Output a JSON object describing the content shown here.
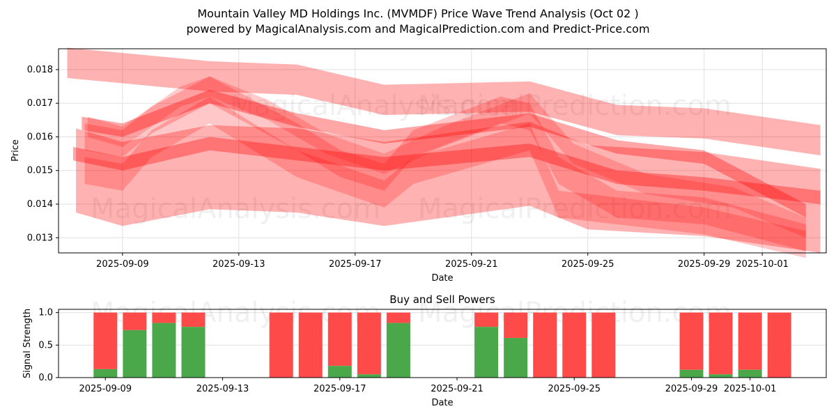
{
  "title_line1": "Mountain Valley MD Holdings Inc. (MVMDF) Price Wave Trend Analysis (Oct 02 )",
  "title_line2": "powered by MagicalAnalysis.com and MagicalPrediction.com and Predict-Price.com",
  "watermarks": [
    "MagicalAnalysis.com",
    "MagicalPrediction.com"
  ],
  "chart_data": [
    {
      "type": "area",
      "title": "",
      "xlabel": "Date",
      "ylabel": "Price",
      "x_unit": "days since 2025-09-09",
      "xlim": [
        -2.2,
        24.2
      ],
      "ylim": [
        0.01255,
        0.01862
      ],
      "xticks": [
        {
          "v": 0,
          "label": "2025-09-09"
        },
        {
          "v": 4,
          "label": "2025-09-13"
        },
        {
          "v": 8,
          "label": "2025-09-17"
        },
        {
          "v": 12,
          "label": "2025-09-21"
        },
        {
          "v": 16,
          "label": "2025-09-25"
        },
        {
          "v": 20,
          "label": "2025-09-29"
        },
        {
          "v": 22,
          "label": "2025-10-01"
        }
      ],
      "yticks": [
        {
          "v": 0.013,
          "label": "0.013"
        },
        {
          "v": 0.014,
          "label": "0.014"
        },
        {
          "v": 0.015,
          "label": "0.015"
        },
        {
          "v": 0.016,
          "label": "0.016"
        },
        {
          "v": 0.017,
          "label": "0.017"
        },
        {
          "v": 0.018,
          "label": "0.018"
        }
      ],
      "grid": true,
      "color": "#ff0000",
      "bands": [
        {
          "width": 0.0009,
          "alpha": 0.3,
          "points": [
            [
              -1.9,
              0.0182
            ],
            [
              3,
              0.0178
            ],
            [
              6,
              0.0177
            ],
            [
              9,
              0.0171
            ],
            [
              14,
              0.0172
            ],
            [
              17,
              0.0165
            ],
            [
              20,
              0.0164
            ],
            [
              24,
              0.0159
            ]
          ]
        },
        {
          "width": 0.0025,
          "alpha": 0.3,
          "points": [
            [
              -1.6,
              0.015
            ],
            [
              0,
              0.0146
            ],
            [
              3,
              0.0151
            ],
            [
              6,
              0.015
            ],
            [
              9,
              0.0146
            ],
            [
              14,
              0.0152
            ],
            [
              16,
              0.0145
            ],
            [
              20,
              0.0143
            ],
            [
              24,
              0.0138
            ]
          ]
        },
        {
          "width": 0.0004,
          "alpha": 0.35,
          "points": [
            [
              -1.7,
              0.0155
            ],
            [
              0,
              0.0152
            ],
            [
              3,
              0.0158
            ],
            [
              9,
              0.0152
            ],
            [
              14,
              0.0156
            ],
            [
              17,
              0.0148
            ],
            [
              20,
              0.0146
            ],
            [
              24,
              0.0142
            ]
          ]
        },
        {
          "width": 0.0004,
          "alpha": 0.35,
          "points": [
            [
              -1.4,
              0.0164
            ],
            [
              0,
              0.0162
            ],
            [
              3,
              0.0172
            ],
            [
              6,
              0.0165
            ],
            [
              9,
              0.016
            ],
            [
              14,
              0.0165
            ],
            [
              17,
              0.0157
            ],
            [
              20,
              0.0154
            ],
            [
              23.5,
              0.0138
            ]
          ]
        },
        {
          "width": 0.0008,
          "alpha": 0.22,
          "points": [
            [
              -1.3,
              0.016
            ],
            [
              0,
              0.0158
            ],
            [
              1,
              0.0165
            ],
            [
              3,
              0.0174
            ],
            [
              6,
              0.016
            ],
            [
              7.5,
              0.0152
            ],
            [
              9,
              0.0148
            ],
            [
              10,
              0.0158
            ],
            [
              13,
              0.0168
            ],
            [
              14,
              0.0166
            ],
            [
              15,
              0.015
            ],
            [
              17,
              0.014
            ],
            [
              20,
              0.0138
            ],
            [
              23.5,
              0.013
            ]
          ]
        },
        {
          "width": 0.0008,
          "alpha": 0.22,
          "points": [
            [
              -1.3,
              0.015
            ],
            [
              0,
              0.0148
            ],
            [
              1,
              0.0158
            ],
            [
              3,
              0.0168
            ],
            [
              6,
              0.0152
            ],
            [
              9,
              0.0143
            ],
            [
              10,
              0.015
            ],
            [
              14,
              0.016
            ],
            [
              15,
              0.014
            ],
            [
              20,
              0.0135
            ],
            [
              23.5,
              0.0128
            ]
          ]
        },
        {
          "width": 0.0006,
          "alpha": 0.2,
          "points": [
            [
              -1.2,
              0.0163
            ],
            [
              0,
              0.016
            ],
            [
              2,
              0.0172
            ],
            [
              3,
              0.0175
            ],
            [
              5,
              0.0168
            ],
            [
              7,
              0.0158
            ],
            [
              9,
              0.0152
            ],
            [
              11,
              0.016
            ],
            [
              14,
              0.017
            ],
            [
              15.5,
              0.0155
            ],
            [
              18,
              0.0146
            ],
            [
              21,
              0.0142
            ],
            [
              23.5,
              0.0133
            ]
          ]
        }
      ]
    },
    {
      "type": "bar",
      "title": "Buy and Sell Powers",
      "xlabel": "Date",
      "ylabel": "Signal Strength",
      "x_unit": "days since 2025-09-09",
      "xlim": [
        -1.6,
        24.6
      ],
      "ylim": [
        0,
        1.05
      ],
      "xticks": [
        {
          "v": 0,
          "label": "2025-09-09"
        },
        {
          "v": 4,
          "label": "2025-09-13"
        },
        {
          "v": 8,
          "label": "2025-09-17"
        },
        {
          "v": 12,
          "label": "2025-09-21"
        },
        {
          "v": 16,
          "label": "2025-09-25"
        },
        {
          "v": 20,
          "label": "2025-09-29"
        },
        {
          "v": 22,
          "label": "2025-10-01"
        }
      ],
      "yticks": [
        {
          "v": 0,
          "label": "0.0"
        },
        {
          "v": 0.5,
          "label": "0.5"
        },
        {
          "v": 1,
          "label": "1.0"
        }
      ],
      "buy_color": "#4aa84a",
      "sell_color": "#ff4a4a",
      "x": [
        0,
        1,
        2,
        3,
        6,
        7,
        8,
        9,
        10,
        13,
        14,
        15,
        16,
        17,
        20,
        21,
        22,
        23
      ],
      "buy": [
        0.13,
        0.73,
        0.84,
        0.78,
        0,
        0,
        0.18,
        0.05,
        0.84,
        0.78,
        0.61,
        0,
        0,
        0,
        0.12,
        0.05,
        0.12,
        0
      ],
      "sell_total": 1.0
    }
  ]
}
